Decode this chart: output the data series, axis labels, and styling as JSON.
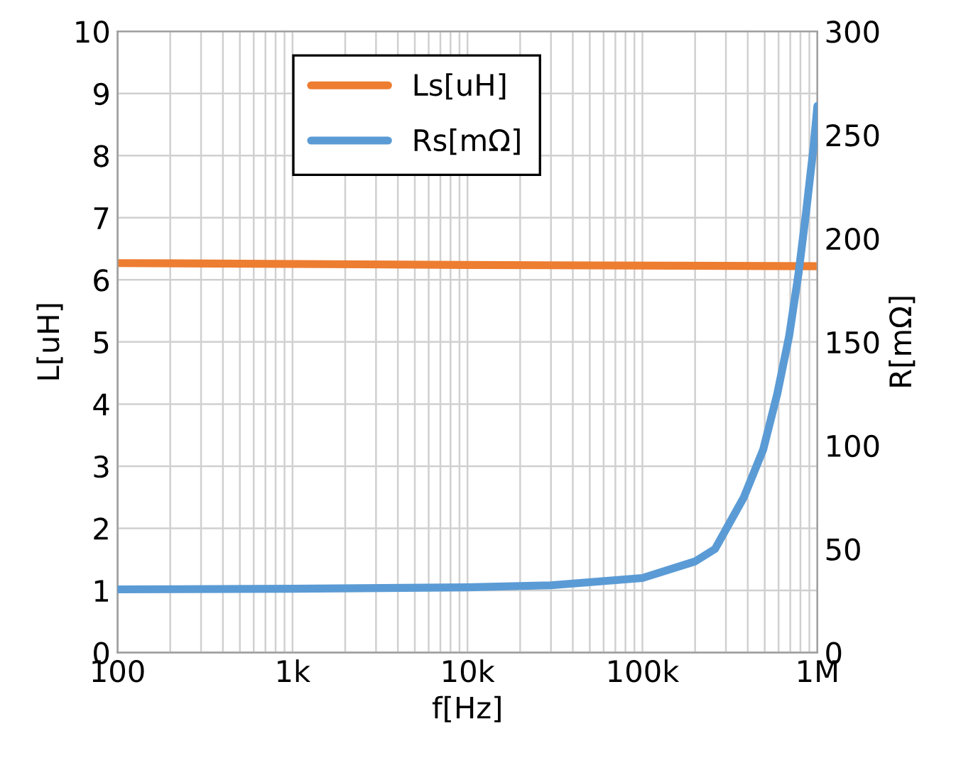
{
  "chart_data": {
    "type": "line",
    "xlabel": "f[Hz]",
    "ylabel": "L[uH]",
    "y2label": "R[mΩ]",
    "log": "x",
    "xlim": [
      100,
      1000000
    ],
    "xticks": [
      100,
      {
        "value": 1000,
        "label": "1k"
      },
      {
        "value": 10000,
        "label": "10k"
      },
      {
        "value": 100000,
        "label": "100k"
      },
      {
        "value": 1000000,
        "label": "1M"
      }
    ],
    "ylim": [
      0,
      10
    ],
    "yticks": [
      0,
      1,
      2,
      3,
      4,
      5,
      6,
      7,
      8,
      9,
      10
    ],
    "y2lim": [
      0,
      300
    ],
    "y2ticks": [
      0,
      50,
      100,
      150,
      200,
      250,
      300
    ],
    "grid": true,
    "legend": "top",
    "marker": "none",
    "line_style": "solid",
    "series": [
      {
        "name": "Ls[uH]",
        "color": "#ed7d31",
        "x": [
          100,
          10000,
          1000000
        ],
        "values": [
          6.27,
          6.24,
          6.22
        ]
      },
      {
        "name": "Rs[mΩ]",
        "color": "#5b9bd5",
        "axis": "y2",
        "x": [
          100,
          1000,
          10000,
          30000,
          100000,
          200000,
          260000,
          380000,
          490000,
          590000,
          690000,
          780000,
          860000,
          950000,
          1000000
        ],
        "values": [
          30.5,
          30.8,
          31.5,
          32.5,
          36,
          44,
          50,
          75,
          98,
          125,
          153,
          183,
          212,
          244,
          264
        ]
      }
    ]
  }
}
